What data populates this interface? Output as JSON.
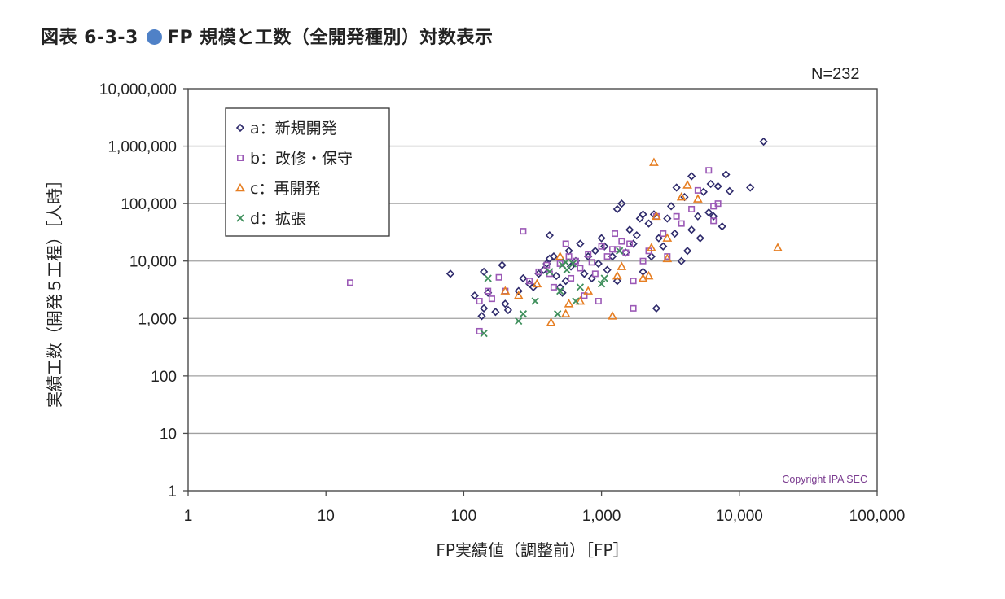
{
  "figure": {
    "label": "図表 6-3-3",
    "title": "FP 規模と工数（全開発種別）対数表示",
    "n_label": "N=232",
    "copyright": "Copyright IPA SEC"
  },
  "colors": {
    "a": "#2e2a6b",
    "b": "#9b59b6",
    "c": "#e67e22",
    "d": "#3f8f5c",
    "title_dot": "#4f81c7"
  },
  "chart_data": {
    "type": "scatter",
    "title": "FP 規模と工数（全開発種別）対数表示",
    "xlabel": "FP実績値（調整前）［FP］",
    "ylabel": "実績工数（開発５工程）［人時］",
    "x_scale": "log",
    "y_scale": "log",
    "xlim": [
      1,
      100000
    ],
    "ylim": [
      1,
      10000000
    ],
    "x_ticks": [
      "1",
      "10",
      "100",
      "1,000",
      "10,000",
      "100,000"
    ],
    "y_ticks": [
      "1",
      "10",
      "100",
      "1,000",
      "10,000",
      "100,000",
      "1,000,000",
      "10,000,000"
    ],
    "grid": "horizontal",
    "legend_position": "top-left",
    "series": [
      {
        "name": "a：新規開発",
        "marker": "diamond",
        "points": [
          [
            80,
            6000
          ],
          [
            140,
            6500
          ],
          [
            190,
            8500
          ],
          [
            120,
            2500
          ],
          [
            150,
            2800
          ],
          [
            140,
            1500
          ],
          [
            135,
            1100
          ],
          [
            170,
            1300
          ],
          [
            200,
            1800
          ],
          [
            210,
            1400
          ],
          [
            250,
            3000
          ],
          [
            270,
            5000
          ],
          [
            300,
            4000
          ],
          [
            320,
            3500
          ],
          [
            350,
            6000
          ],
          [
            380,
            7000
          ],
          [
            400,
            9000
          ],
          [
            420,
            11000
          ],
          [
            420,
            28000
          ],
          [
            450,
            12000
          ],
          [
            470,
            5500
          ],
          [
            500,
            3500
          ],
          [
            520,
            2800
          ],
          [
            550,
            4500
          ],
          [
            580,
            15000
          ],
          [
            600,
            8000
          ],
          [
            650,
            10000
          ],
          [
            700,
            20000
          ],
          [
            750,
            6000
          ],
          [
            800,
            12000
          ],
          [
            850,
            5000
          ],
          [
            900,
            15000
          ],
          [
            950,
            9000
          ],
          [
            1000,
            25000
          ],
          [
            1050,
            18000
          ],
          [
            1100,
            7000
          ],
          [
            1200,
            12000
          ],
          [
            1300,
            4500
          ],
          [
            1300,
            80000
          ],
          [
            1400,
            100000
          ],
          [
            1500,
            14000
          ],
          [
            1600,
            35000
          ],
          [
            1700,
            20000
          ],
          [
            1800,
            28000
          ],
          [
            1900,
            55000
          ],
          [
            2000,
            65000
          ],
          [
            2000,
            6500
          ],
          [
            2200,
            45000
          ],
          [
            2300,
            12000
          ],
          [
            2400,
            65000
          ],
          [
            2500,
            1500
          ],
          [
            2600,
            25000
          ],
          [
            2800,
            18000
          ],
          [
            3000,
            55000
          ],
          [
            3200,
            90000
          ],
          [
            3400,
            30000
          ],
          [
            3500,
            190000
          ],
          [
            3800,
            10000
          ],
          [
            4000,
            130000
          ],
          [
            4200,
            15000
          ],
          [
            4500,
            35000
          ],
          [
            4500,
            300000
          ],
          [
            5000,
            60000
          ],
          [
            5200,
            25000
          ],
          [
            5500,
            160000
          ],
          [
            6000,
            70000
          ],
          [
            6200,
            220000
          ],
          [
            6500,
            60000
          ],
          [
            7000,
            200000
          ],
          [
            7500,
            40000
          ],
          [
            8000,
            320000
          ],
          [
            8500,
            165000
          ],
          [
            12000,
            190000
          ],
          [
            15000,
            1200000
          ]
        ]
      },
      {
        "name": "b：改修・保守",
        "marker": "square",
        "points": [
          [
            15,
            4200
          ],
          [
            130,
            600
          ],
          [
            130,
            2000
          ],
          [
            150,
            3000
          ],
          [
            160,
            2200
          ],
          [
            180,
            5200
          ],
          [
            200,
            3000
          ],
          [
            270,
            33000
          ],
          [
            300,
            4500
          ],
          [
            350,
            6500
          ],
          [
            400,
            8500
          ],
          [
            420,
            6000
          ],
          [
            450,
            3500
          ],
          [
            500,
            9000
          ],
          [
            550,
            20000
          ],
          [
            580,
            12000
          ],
          [
            600,
            5000
          ],
          [
            650,
            10000
          ],
          [
            700,
            7500
          ],
          [
            750,
            2500
          ],
          [
            800,
            13000
          ],
          [
            850,
            9500
          ],
          [
            900,
            6000
          ],
          [
            950,
            2000
          ],
          [
            1000,
            18000
          ],
          [
            1100,
            12000
          ],
          [
            1200,
            16000
          ],
          [
            1250,
            30000
          ],
          [
            1300,
            16000
          ],
          [
            1400,
            22000
          ],
          [
            1500,
            14000
          ],
          [
            1600,
            20000
          ],
          [
            1700,
            4500
          ],
          [
            1700,
            1500
          ],
          [
            2000,
            10000
          ],
          [
            2200,
            15000
          ],
          [
            2500,
            60000
          ],
          [
            2800,
            30000
          ],
          [
            3000,
            12000
          ],
          [
            3500,
            60000
          ],
          [
            3800,
            45000
          ],
          [
            4500,
            80000
          ],
          [
            5000,
            170000
          ],
          [
            6000,
            380000
          ],
          [
            6500,
            90000
          ],
          [
            6500,
            50000
          ],
          [
            7000,
            100000
          ]
        ]
      },
      {
        "name": "c：再開発",
        "marker": "triangle",
        "points": [
          [
            200,
            3000
          ],
          [
            250,
            2500
          ],
          [
            340,
            4000
          ],
          [
            430,
            850
          ],
          [
            500,
            12000
          ],
          [
            550,
            1200
          ],
          [
            580,
            1800
          ],
          [
            700,
            2000
          ],
          [
            800,
            3000
          ],
          [
            1200,
            1100
          ],
          [
            1300,
            5500
          ],
          [
            1400,
            8000
          ],
          [
            2000,
            5000
          ],
          [
            2200,
            5500
          ],
          [
            2300,
            17000
          ],
          [
            2400,
            520000
          ],
          [
            2500,
            60000
          ],
          [
            3000,
            11000
          ],
          [
            3000,
            25000
          ],
          [
            3800,
            130000
          ],
          [
            4200,
            210000
          ],
          [
            5000,
            120000
          ],
          [
            19000,
            17000
          ]
        ]
      },
      {
        "name": "d：拡張",
        "marker": "cross",
        "points": [
          [
            140,
            550
          ],
          [
            150,
            5000
          ],
          [
            250,
            900
          ],
          [
            270,
            1200
          ],
          [
            330,
            2000
          ],
          [
            420,
            6500
          ],
          [
            480,
            1200
          ],
          [
            500,
            3000
          ],
          [
            520,
            8500
          ],
          [
            550,
            9500
          ],
          [
            560,
            7000
          ],
          [
            620,
            9000
          ],
          [
            650,
            2000
          ],
          [
            700,
            3500
          ],
          [
            1000,
            4000
          ],
          [
            1050,
            5000
          ],
          [
            1350,
            15000
          ]
        ]
      }
    ]
  }
}
